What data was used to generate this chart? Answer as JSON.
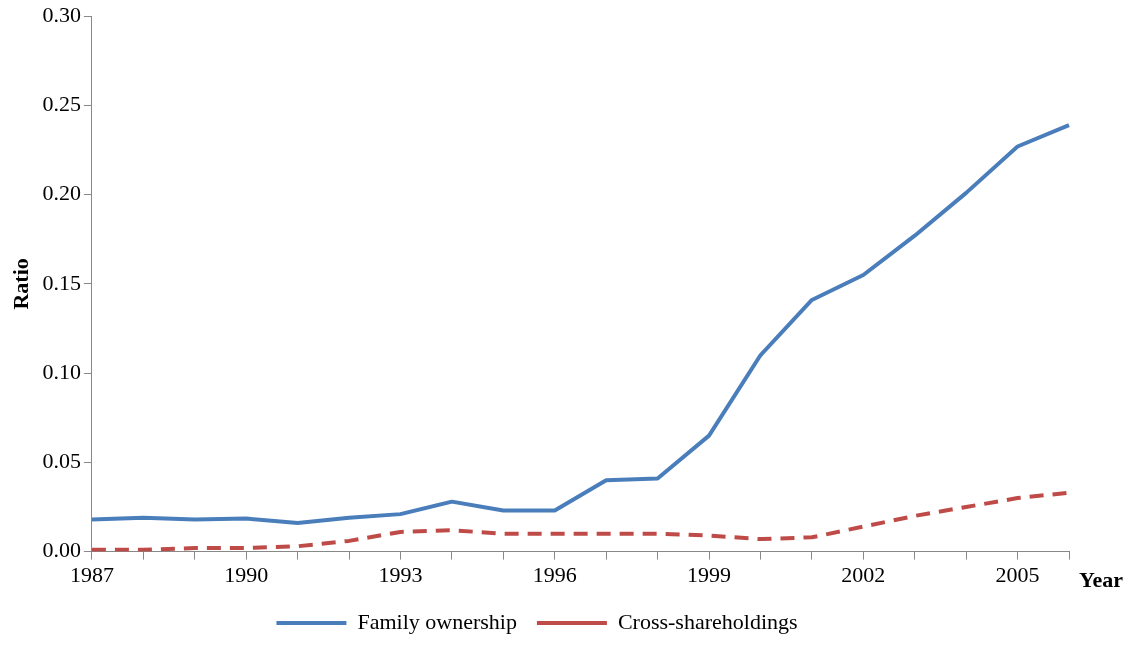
{
  "chart_data": {
    "type": "line",
    "xlabel": "Year",
    "ylabel": "Ratio",
    "categories": [
      "1987",
      null,
      null,
      "1990",
      null,
      null,
      "1993",
      null,
      null,
      "1996",
      null,
      null,
      "1999",
      null,
      null,
      "2002",
      null,
      null,
      "2005",
      null
    ],
    "series": [
      {
        "name": "Family ownership",
        "color": "#4a7ebb",
        "line_style": "solid",
        "values": [
          0.018,
          0.019,
          0.018,
          0.0185,
          0.016,
          0.019,
          0.021,
          0.028,
          0.023,
          0.023,
          0.04,
          0.041,
          0.065,
          0.11,
          0.141,
          0.155,
          0.177,
          0.201,
          0.227,
          0.239
        ]
      },
      {
        "name": "Cross-shareholdings",
        "color": "#be4b48",
        "line_style": "dashed",
        "values": [
          0.001,
          0.001,
          0.002,
          0.002,
          0.003,
          0.006,
          0.011,
          0.012,
          0.01,
          0.01,
          0.01,
          0.01,
          0.009,
          0.007,
          0.008,
          0.014,
          0.02,
          0.025,
          0.03,
          0.033
        ]
      }
    ],
    "ylim": [
      0,
      0.3
    ],
    "yticks": [
      {
        "value": 0,
        "label": "0.00"
      },
      {
        "value": 0.05,
        "label": "0.05"
      },
      {
        "value": 0.1,
        "label": "0.10"
      },
      {
        "value": 0.15,
        "label": "0.15"
      },
      {
        "value": 0.2,
        "label": "0.20"
      },
      {
        "value": 0.25,
        "label": "0.25"
      },
      {
        "value": 0.3,
        "label": "0.30"
      }
    ],
    "grid": false,
    "legend": "bottom",
    "marker": "none"
  }
}
